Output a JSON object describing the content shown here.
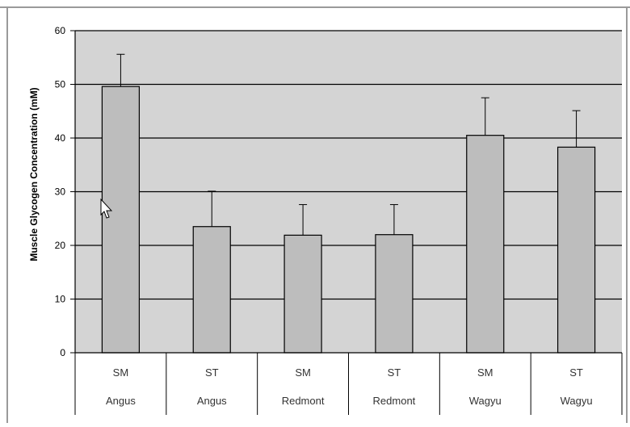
{
  "chart_data": {
    "type": "bar",
    "ylabel": "Muscle Glycogen Concentration (mM)",
    "xlabel": "",
    "title": "",
    "ylim": [
      0,
      60
    ],
    "yticks": [
      0,
      10,
      20,
      30,
      40,
      50,
      60
    ],
    "ytick_labels": [
      "0",
      "10",
      "20",
      "30",
      "40",
      "50",
      "60"
    ],
    "grid": true,
    "legend": "none",
    "categories": [
      {
        "muscle": "SM",
        "breed": "Angus"
      },
      {
        "muscle": "ST",
        "breed": "Angus"
      },
      {
        "muscle": "SM",
        "breed": "Redmont"
      },
      {
        "muscle": "ST",
        "breed": "Redmont"
      },
      {
        "muscle": "SM",
        "breed": "Wagyu"
      },
      {
        "muscle": "ST",
        "breed": "Wagyu"
      }
    ],
    "values": [
      49.6,
      23.5,
      21.9,
      22.0,
      40.5,
      38.3
    ],
    "error_upper": [
      55.6,
      30.1,
      27.6,
      27.6,
      47.5,
      45.1
    ],
    "colors": {
      "plot_bg": "#d4d4d4",
      "bar_fill": "#bdbdbd",
      "bar_stroke": "#000000",
      "grid": "#000000",
      "frame": "#9a9a9a"
    }
  }
}
